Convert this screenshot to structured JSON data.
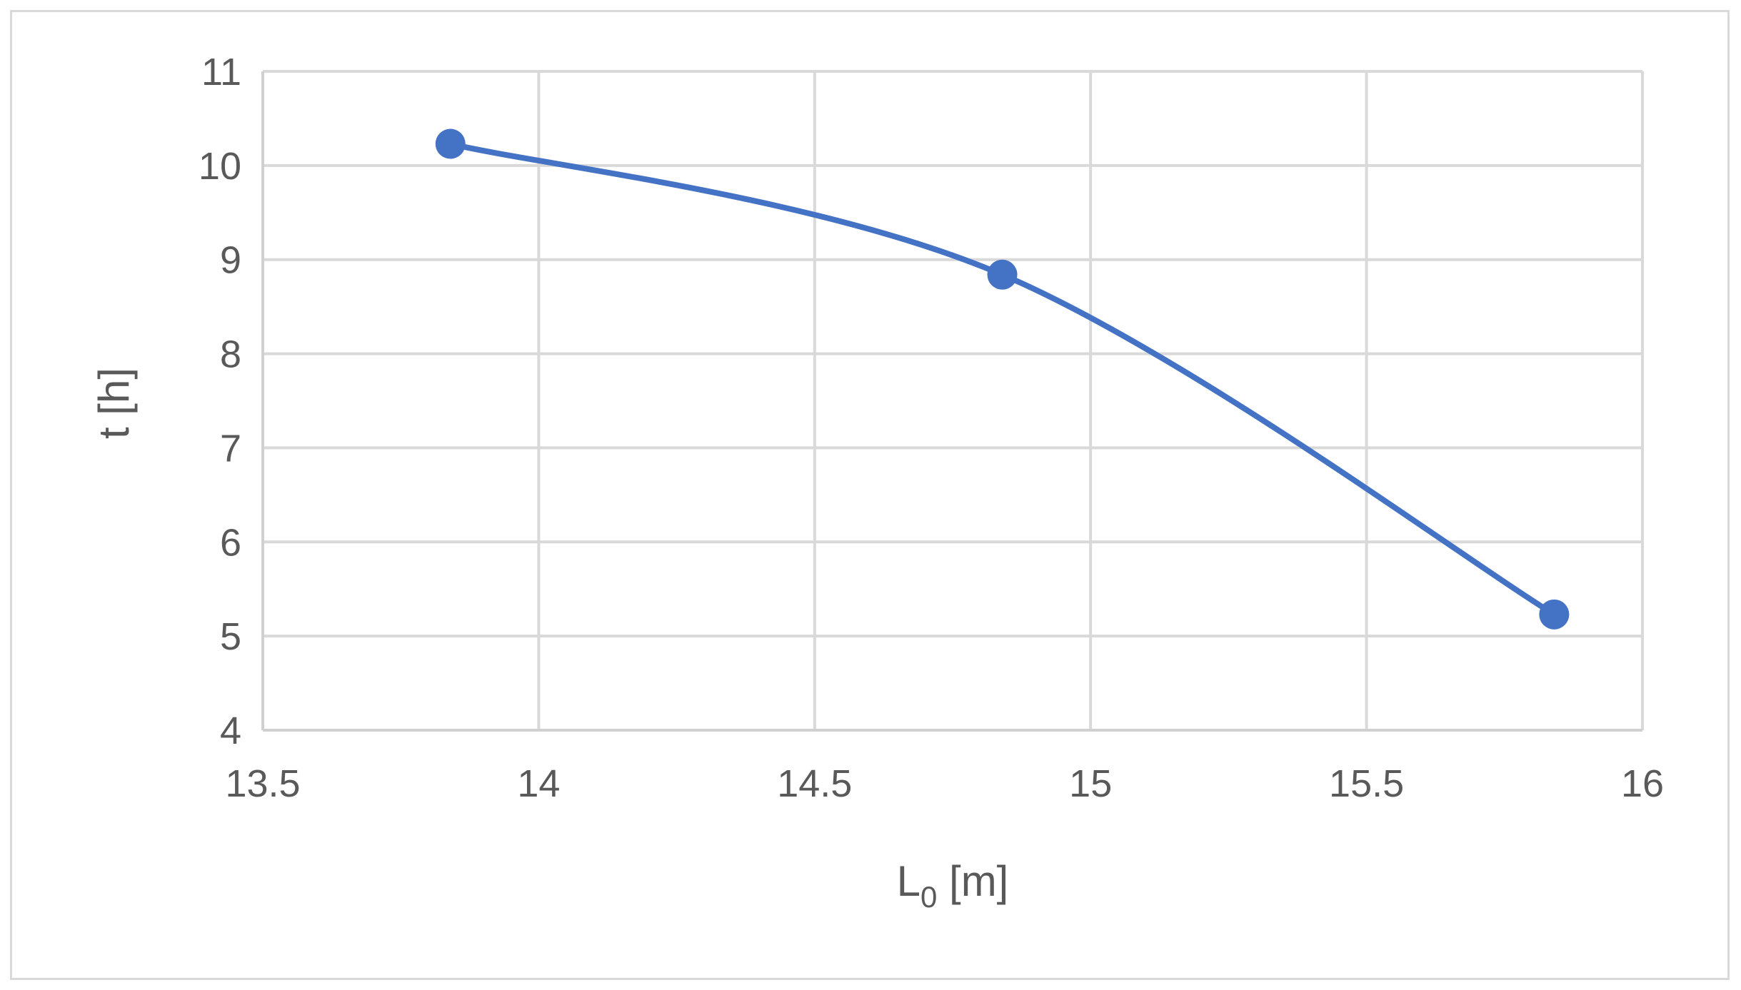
{
  "chart_data": {
    "type": "scatter",
    "xlabel": "L",
    "xlabel_subscript": "0",
    "xlabel_unit": " [m]",
    "ylabel": "t [h]",
    "xlim": [
      13.5,
      16
    ],
    "ylim": [
      4,
      11
    ],
    "xticks": [
      "13.5",
      "14",
      "14.5",
      "15",
      "15.5",
      "16"
    ],
    "yticks": [
      "4",
      "5",
      "6",
      "7",
      "8",
      "9",
      "10",
      "11"
    ],
    "grid": true,
    "smooth_line": true,
    "series": [
      {
        "color": "#4472c4",
        "points": [
          {
            "x": 13.84,
            "y": 10.23
          },
          {
            "x": 14.84,
            "y": 8.84
          },
          {
            "x": 15.84,
            "y": 5.23
          }
        ]
      }
    ]
  }
}
